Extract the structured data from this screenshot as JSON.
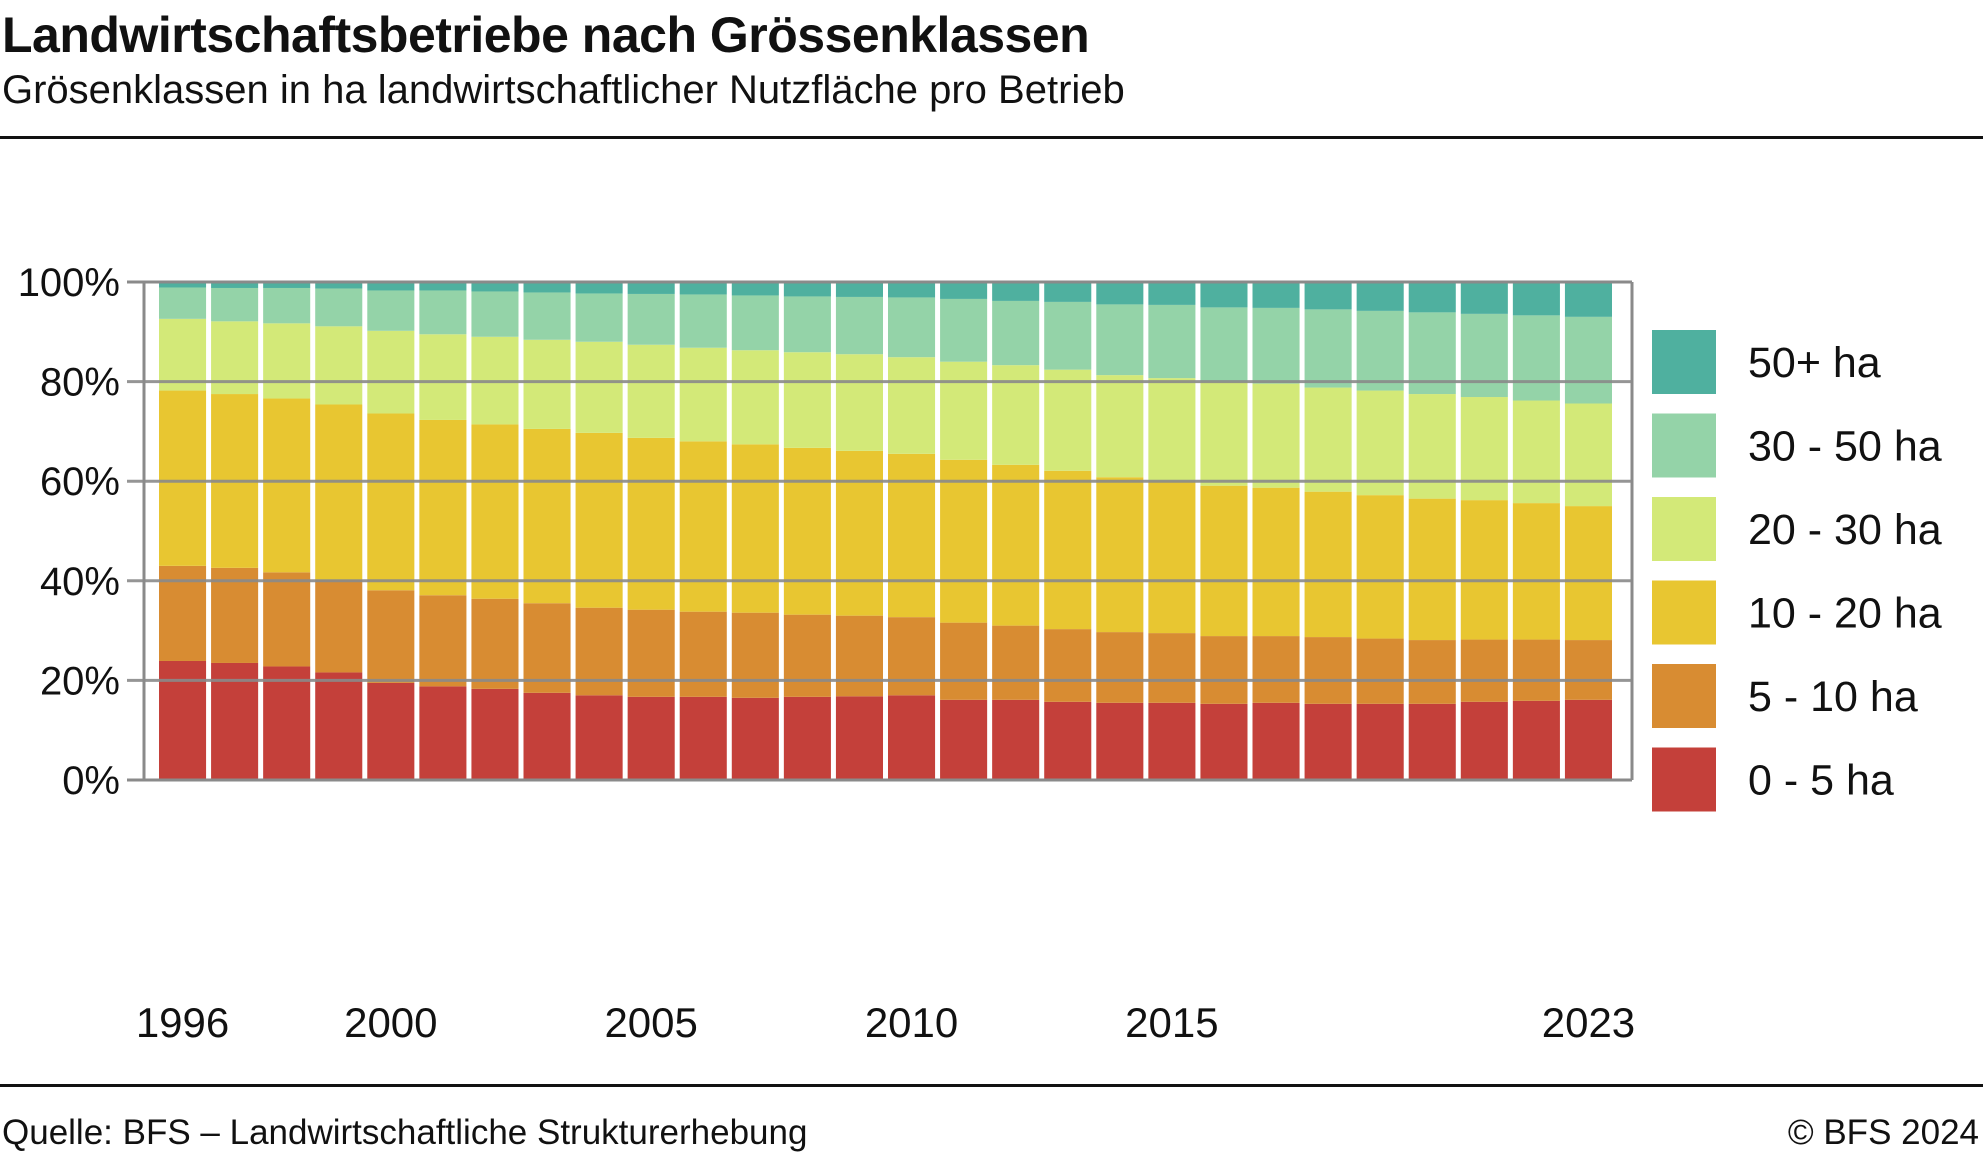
{
  "header": {
    "title": "Landwirtschaftsbetriebe nach Grössenklassen",
    "subtitle": "Grösenklassen in ha landwirtschaftlicher Nutzfläche pro Betrieb"
  },
  "footer": {
    "source": "Quelle: BFS – Landwirtschaftliche Strukturerhebung",
    "copyright": "© BFS 2024"
  },
  "chart_data": {
    "type": "bar",
    "stacked": true,
    "normalized": true,
    "title": "",
    "xlabel": "",
    "ylabel": "",
    "ylim": [
      0,
      100
    ],
    "y_ticks": [
      "0%",
      "20%",
      "40%",
      "60%",
      "80%",
      "100%"
    ],
    "x_tick_labels": [
      "1996",
      "2000",
      "2005",
      "2010",
      "2015",
      "2023"
    ],
    "grid": "horizontal",
    "legend_position": "right",
    "categories": [
      1996,
      1997,
      1998,
      1999,
      2000,
      2001,
      2002,
      2003,
      2004,
      2005,
      2006,
      2007,
      2008,
      2009,
      2010,
      2011,
      2012,
      2013,
      2014,
      2015,
      2016,
      2017,
      2018,
      2019,
      2020,
      2021,
      2022,
      2023
    ],
    "series": [
      {
        "name": "0 - 5 ha",
        "color": "#c4403a",
        "values": [
          23.9,
          23.5,
          22.8,
          21.6,
          19.5,
          18.8,
          18.3,
          17.5,
          17.0,
          16.7,
          16.7,
          16.5,
          16.7,
          16.8,
          17.0,
          16.1,
          16.1,
          15.7,
          15.5,
          15.5,
          15.3,
          15.5,
          15.3,
          15.3,
          15.3,
          15.7,
          15.9,
          16.1
        ]
      },
      {
        "name": "5 - 10 ha",
        "color": "#d88c32",
        "values": [
          19.1,
          19.1,
          18.9,
          18.6,
          18.6,
          18.3,
          18.1,
          18.0,
          17.6,
          17.5,
          17.1,
          17.1,
          16.5,
          16.2,
          15.7,
          15.5,
          14.9,
          14.6,
          14.2,
          14.0,
          13.6,
          13.4,
          13.4,
          13.1,
          12.8,
          12.5,
          12.3,
          12.0
        ]
      },
      {
        "name": "10 - 20 ha",
        "color": "#e8c631",
        "values": [
          35.2,
          34.9,
          34.9,
          35.2,
          35.5,
          35.2,
          35.0,
          35.0,
          35.1,
          34.5,
          34.2,
          33.8,
          33.5,
          33.1,
          32.8,
          32.7,
          32.3,
          31.8,
          31.1,
          30.5,
          30.2,
          29.8,
          29.2,
          28.8,
          28.4,
          28.0,
          27.4,
          26.9
        ]
      },
      {
        "name": "20 - 30 ha",
        "color": "#d3e978",
        "values": [
          14.4,
          14.6,
          15.1,
          15.7,
          16.6,
          17.2,
          17.6,
          17.9,
          18.3,
          18.7,
          18.8,
          18.9,
          19.2,
          19.4,
          19.4,
          19.7,
          20.0,
          20.3,
          20.5,
          20.7,
          20.9,
          20.9,
          20.9,
          21.0,
          21.0,
          20.7,
          20.6,
          20.6
        ]
      },
      {
        "name": "30 - 50 ha",
        "color": "#94d3a8",
        "values": [
          6.3,
          6.7,
          7.1,
          7.6,
          8.1,
          8.8,
          9.1,
          9.5,
          9.7,
          10.2,
          10.7,
          11.0,
          11.2,
          11.5,
          12.0,
          12.6,
          12.9,
          13.6,
          14.2,
          14.7,
          14.9,
          15.2,
          15.7,
          16.0,
          16.4,
          16.7,
          17.1,
          17.4
        ]
      },
      {
        "name": "50+ ha",
        "color": "#4fb09f",
        "values": [
          1.1,
          1.2,
          1.2,
          1.3,
          1.7,
          1.7,
          1.9,
          2.1,
          2.3,
          2.4,
          2.5,
          2.7,
          2.9,
          3.0,
          3.1,
          3.4,
          3.8,
          4.0,
          4.5,
          4.6,
          5.1,
          5.2,
          5.5,
          5.8,
          6.1,
          6.4,
          6.7,
          7.0
        ]
      }
    ]
  }
}
